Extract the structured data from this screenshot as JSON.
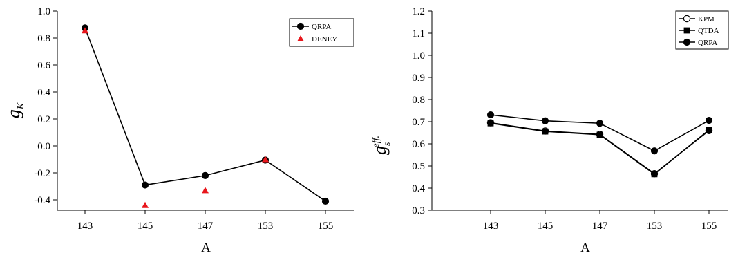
{
  "colors": {
    "qrpa": "#000000",
    "deney": "#e8161c",
    "axis": "#000000"
  },
  "chart_data": [
    {
      "type": "line",
      "categories": [
        "143",
        "145",
        "147",
        "153",
        "155"
      ],
      "xlabel": "A",
      "ylabel_main": "g",
      "ylabel_sub": "K",
      "ylim": [
        -0.5,
        1.0
      ],
      "yticks": [
        "1.0",
        "0.8",
        "0.6",
        "0.4",
        "0.2",
        "0.0",
        "-0.2",
        "-0.4"
      ],
      "legend_position": "top-right",
      "series": [
        {
          "name": "QRPA",
          "marker": "filled-circle",
          "line": true,
          "values": [
            0.875,
            -0.29,
            -0.22,
            -0.105,
            -0.41
          ]
        },
        {
          "name": "DENEY",
          "marker": "triangle",
          "line": false,
          "values": [
            0.855,
            -0.44,
            -0.33,
            -0.1,
            null
          ]
        }
      ]
    },
    {
      "type": "line",
      "categories": [
        "143",
        "145",
        "147",
        "153",
        "155"
      ],
      "xlabel": "A",
      "ylabel_main": "g",
      "ylabel_sub": "s",
      "ylabel_sup": "eff.",
      "ylim": [
        0.3,
        1.2
      ],
      "yticks": [
        "1.2",
        "1.1",
        "1.0",
        "0.9",
        "0.8",
        "0.7",
        "0.6",
        "0.5",
        "0.4",
        "0.3"
      ],
      "legend_position": "top-right",
      "series": [
        {
          "name": "KPM",
          "marker": "open-circle",
          "line": true,
          "values": [
            0.695,
            0.658,
            0.643,
            0.465,
            0.66
          ]
        },
        {
          "name": "QTDA",
          "marker": "filled-square",
          "line": true,
          "values": [
            0.693,
            0.656,
            0.641,
            0.463,
            0.663
          ]
        },
        {
          "name": "QRPA",
          "marker": "filled-circle",
          "line": true,
          "values": [
            0.731,
            0.704,
            0.693,
            0.568,
            0.706
          ]
        }
      ]
    }
  ]
}
